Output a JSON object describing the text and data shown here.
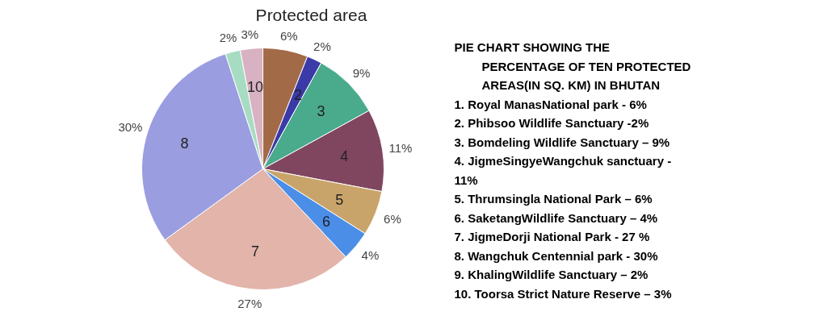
{
  "chart_data": {
    "type": "pie",
    "title": "Protected area",
    "categories": [
      null,
      "2",
      "3",
      "4",
      "5",
      "6",
      "7",
      "8",
      null,
      "10"
    ],
    "values": [
      6,
      2,
      9,
      11,
      6,
      4,
      27,
      30,
      2,
      3
    ],
    "colors": [
      "#a36a48",
      "#3a3aa8",
      "#4aaa8c",
      "#804660",
      "#c9a46a",
      "#4a8ee8",
      "#e2b4aa",
      "#9a9ee0",
      "#a8dcc2",
      "#d8b2c2"
    ],
    "value_labels": [
      "6%",
      "2%",
      "9%",
      "11%",
      "6%",
      "4%",
      "27%",
      "30%",
      "2%",
      "3%"
    ],
    "annotations": [
      "PIE CHART SHOWING THE",
      "PERCENTAGE OF TEN PROTECTED",
      "AREAS(IN SQ. KM)  IN BHUTAN",
      "1.  Royal ManasNational park  - 6%",
      "2.  Phibsoo Wildlife Sanctuary -2%",
      "3.  Bomdeling Wildlife Sanctuary – 9%",
      "4.  JigmeSingyeWangchuk sanctuary -",
      "11%",
      "5.  Thrumsingla National Park – 6%",
      "6.  SaketangWildlife Sanctuary –  4%",
      "7.  JigmeDorji  National Park -  27 %",
      "8.  Wangchuk Centennial park -  30%",
      "9.  KhalingWildlife Sanctuary –  2%",
      "10.  Toorsa Strict  Nature Reserve – 3%"
    ]
  }
}
